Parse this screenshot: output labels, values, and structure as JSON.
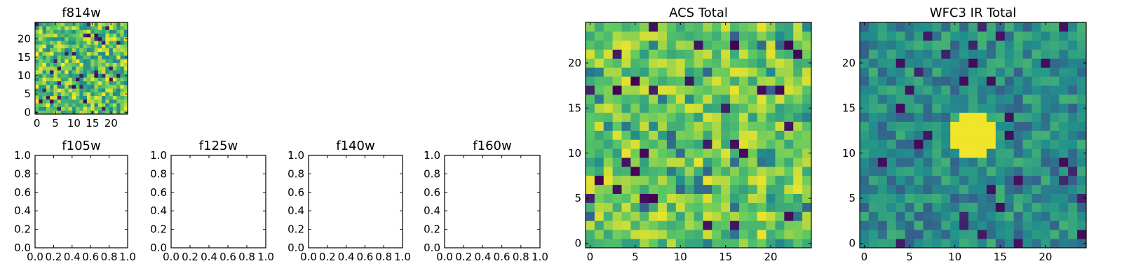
{
  "figure": {
    "background": "#ffffff",
    "colormap": "viridis",
    "colormap_stops": [
      "#440154",
      "#3b528b",
      "#21918c",
      "#5ec962",
      "#fde725"
    ]
  },
  "chart_data": [
    {
      "id": "f814w",
      "type": "heatmap",
      "title": "f814w",
      "grid_size": [
        25,
        25
      ],
      "xlim": [
        0,
        24
      ],
      "ylim": [
        0,
        24
      ],
      "xticks": [
        "0",
        "5",
        "10",
        "15",
        "20"
      ],
      "yticks": [
        "0",
        "5",
        "10",
        "15",
        "20"
      ],
      "value_range": [
        0,
        1
      ],
      "note": "noise-like pixel image"
    },
    {
      "id": "f105w",
      "type": "empty",
      "title": "f105w",
      "xticks": [
        "0.0",
        "0.2",
        "0.4",
        "0.6",
        "0.8",
        "1.0"
      ],
      "yticks": [
        "0.0",
        "0.2",
        "0.4",
        "0.6",
        "0.8",
        "1.0"
      ],
      "xlim": [
        0,
        1
      ],
      "ylim": [
        0,
        1
      ]
    },
    {
      "id": "f125w",
      "type": "empty",
      "title": "f125w",
      "xticks": [
        "0.0",
        "0.2",
        "0.4",
        "0.6",
        "0.8",
        "1.0"
      ],
      "yticks": [
        "0.0",
        "0.2",
        "0.4",
        "0.6",
        "0.8",
        "1.0"
      ],
      "xlim": [
        0,
        1
      ],
      "ylim": [
        0,
        1
      ]
    },
    {
      "id": "f140w",
      "type": "empty",
      "title": "f140w",
      "xticks": [
        "0.0",
        "0.2",
        "0.4",
        "0.6",
        "0.8",
        "1.0"
      ],
      "yticks": [
        "0.0",
        "0.2",
        "0.4",
        "0.6",
        "0.8",
        "1.0"
      ],
      "xlim": [
        0,
        1
      ],
      "ylim": [
        0,
        1
      ]
    },
    {
      "id": "f160w",
      "type": "empty",
      "title": "f160w",
      "xticks": [
        "0.0",
        "0.2",
        "0.4",
        "0.6",
        "0.8",
        "1.0"
      ],
      "yticks": [
        "0.0",
        "0.2",
        "0.4",
        "0.6",
        "0.8",
        "1.0"
      ],
      "xlim": [
        0,
        1
      ],
      "ylim": [
        0,
        1
      ]
    },
    {
      "id": "acs-total",
      "type": "heatmap",
      "title": "ACS Total",
      "grid_size": [
        25,
        25
      ],
      "xlim": [
        0,
        24
      ],
      "ylim": [
        0,
        24
      ],
      "xticks": [
        "0",
        "5",
        "10",
        "15",
        "20"
      ],
      "yticks": [
        "0",
        "5",
        "10",
        "15",
        "20"
      ],
      "value_range": [
        0,
        1
      ],
      "note": "noise-like pixel image, mostly green-yellow"
    },
    {
      "id": "wfc3-ir-total",
      "type": "heatmap",
      "title": "WFC3 IR Total",
      "grid_size": [
        25,
        25
      ],
      "xlim": [
        0,
        24
      ],
      "ylim": [
        0,
        24
      ],
      "xticks": [
        "0",
        "5",
        "10",
        "15",
        "20"
      ],
      "yticks": [
        "0",
        "5",
        "10",
        "15",
        "20"
      ],
      "value_range": [
        0,
        1
      ],
      "note": "noise-like pixel image with a bright yellow source near x=12, y=12"
    }
  ]
}
